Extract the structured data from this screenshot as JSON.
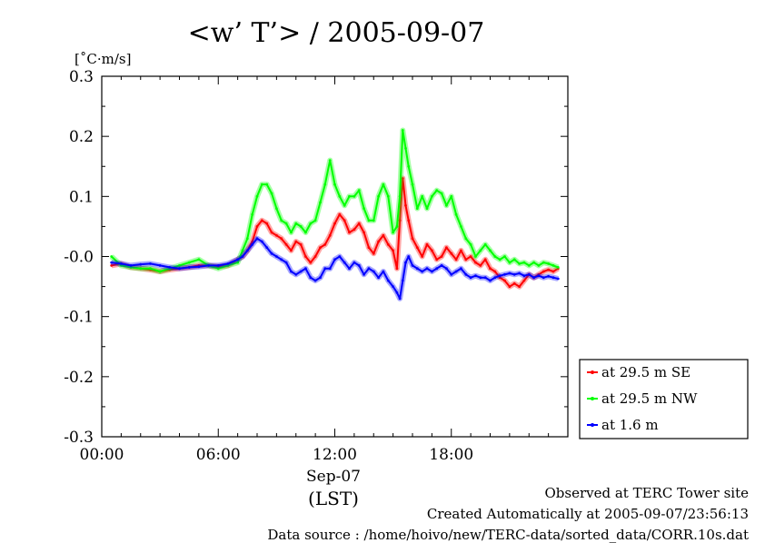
{
  "chart_data": {
    "type": "line",
    "title": "<w’ T’> / 2005-09-07",
    "ylabel": "[˚C·m/s]",
    "ylim": [
      -0.3,
      0.3
    ],
    "yticks": [
      "0.3",
      "0.2",
      "0.1",
      "-0.0",
      "-0.1",
      "-0.2",
      "-0.3"
    ],
    "xlim": [
      0,
      24
    ],
    "xticks": [
      "00:00",
      "06:00",
      "12:00",
      "18:00"
    ],
    "xdate": "Sep-07",
    "xunit": "(LST)",
    "grid": false,
    "legend_position": "lower-right outside",
    "series": [
      {
        "name": "at 29.5 m SE",
        "color": "#ff0000",
        "x": [
          0.5,
          1.0,
          1.5,
          2.0,
          2.5,
          3.0,
          3.5,
          4.0,
          4.5,
          5.0,
          5.5,
          6.0,
          6.5,
          7.0,
          7.25,
          7.5,
          7.75,
          8.0,
          8.25,
          8.5,
          8.75,
          9.0,
          9.25,
          9.5,
          9.75,
          10.0,
          10.25,
          10.5,
          10.75,
          11.0,
          11.25,
          11.5,
          11.75,
          12.0,
          12.25,
          12.5,
          12.75,
          13.0,
          13.25,
          13.5,
          13.75,
          14.0,
          14.25,
          14.5,
          14.75,
          15.0,
          15.2,
          15.35,
          15.5,
          15.65,
          15.8,
          16.0,
          16.25,
          16.5,
          16.75,
          17.0,
          17.25,
          17.5,
          17.75,
          18.0,
          18.25,
          18.5,
          18.75,
          19.0,
          19.25,
          19.5,
          19.75,
          20.0,
          20.25,
          20.5,
          20.75,
          21.0,
          21.25,
          21.5,
          21.75,
          22.0,
          22.25,
          22.5,
          22.75,
          23.0,
          23.25,
          23.5
        ],
        "y": [
          -0.015,
          -0.012,
          -0.018,
          -0.02,
          -0.022,
          -0.025,
          -0.022,
          -0.02,
          -0.018,
          -0.015,
          -0.015,
          -0.017,
          -0.015,
          -0.005,
          0.0,
          0.01,
          0.025,
          0.05,
          0.06,
          0.055,
          0.04,
          0.035,
          0.03,
          0.02,
          0.01,
          0.025,
          0.02,
          0.0,
          -0.01,
          0.0,
          0.015,
          0.02,
          0.035,
          0.055,
          0.07,
          0.06,
          0.04,
          0.045,
          0.055,
          0.04,
          0.015,
          0.005,
          0.025,
          0.035,
          0.02,
          0.01,
          -0.02,
          0.06,
          0.13,
          0.085,
          0.06,
          0.03,
          0.015,
          0.0,
          0.02,
          0.01,
          -0.005,
          0.0,
          0.015,
          0.005,
          -0.005,
          0.01,
          -0.005,
          0.0,
          -0.01,
          -0.015,
          -0.005,
          -0.02,
          -0.025,
          -0.035,
          -0.04,
          -0.05,
          -0.045,
          -0.05,
          -0.04,
          -0.03,
          -0.035,
          -0.03,
          -0.025,
          -0.022,
          -0.025,
          -0.02
        ]
      },
      {
        "name": "at 29.5 m NW",
        "color": "#00ff00",
        "x": [
          0.5,
          1.0,
          1.5,
          2.0,
          2.5,
          3.0,
          3.5,
          4.0,
          4.5,
          5.0,
          5.5,
          6.0,
          6.5,
          7.0,
          7.25,
          7.5,
          7.75,
          8.0,
          8.25,
          8.5,
          8.75,
          9.0,
          9.25,
          9.5,
          9.75,
          10.0,
          10.25,
          10.5,
          10.75,
          11.0,
          11.25,
          11.5,
          11.75,
          12.0,
          12.25,
          12.5,
          12.75,
          13.0,
          13.25,
          13.5,
          13.75,
          14.0,
          14.25,
          14.5,
          14.75,
          15.0,
          15.2,
          15.35,
          15.5,
          15.65,
          15.8,
          16.0,
          16.25,
          16.5,
          16.75,
          17.0,
          17.25,
          17.5,
          17.75,
          18.0,
          18.25,
          18.5,
          18.75,
          19.0,
          19.25,
          19.5,
          19.75,
          20.0,
          20.25,
          20.5,
          20.75,
          21.0,
          21.25,
          21.5,
          21.75,
          22.0,
          22.25,
          22.5,
          22.75,
          23.0,
          23.25,
          23.5
        ],
        "y": [
          0.0,
          -0.015,
          -0.018,
          -0.02,
          -0.02,
          -0.025,
          -0.02,
          -0.015,
          -0.01,
          -0.005,
          -0.015,
          -0.02,
          -0.015,
          -0.01,
          0.01,
          0.03,
          0.07,
          0.1,
          0.12,
          0.12,
          0.105,
          0.08,
          0.06,
          0.055,
          0.04,
          0.055,
          0.05,
          0.04,
          0.055,
          0.06,
          0.09,
          0.12,
          0.16,
          0.12,
          0.1,
          0.085,
          0.1,
          0.1,
          0.11,
          0.08,
          0.06,
          0.06,
          0.1,
          0.12,
          0.1,
          0.04,
          0.05,
          0.1,
          0.21,
          0.18,
          0.15,
          0.12,
          0.08,
          0.1,
          0.08,
          0.1,
          0.11,
          0.105,
          0.085,
          0.1,
          0.07,
          0.05,
          0.03,
          0.02,
          0.0,
          0.01,
          0.02,
          0.01,
          0.0,
          -0.005,
          0.0,
          -0.01,
          -0.005,
          -0.012,
          -0.01,
          -0.015,
          -0.01,
          -0.015,
          -0.01,
          -0.012,
          -0.015,
          -0.018
        ]
      },
      {
        "name": "at 1.6 m",
        "color": "#0000ff",
        "x": [
          0.5,
          1.0,
          1.5,
          2.0,
          2.5,
          3.0,
          3.5,
          4.0,
          4.5,
          5.0,
          5.5,
          6.0,
          6.5,
          7.0,
          7.25,
          7.5,
          7.75,
          8.0,
          8.25,
          8.5,
          8.75,
          9.0,
          9.25,
          9.5,
          9.75,
          10.0,
          10.25,
          10.5,
          10.75,
          11.0,
          11.25,
          11.5,
          11.75,
          12.0,
          12.25,
          12.5,
          12.75,
          13.0,
          13.25,
          13.5,
          13.75,
          14.0,
          14.25,
          14.5,
          14.75,
          15.0,
          15.2,
          15.35,
          15.5,
          15.65,
          15.8,
          16.0,
          16.25,
          16.5,
          16.75,
          17.0,
          17.25,
          17.5,
          17.75,
          18.0,
          18.25,
          18.5,
          18.75,
          19.0,
          19.25,
          19.5,
          19.75,
          20.0,
          20.25,
          20.5,
          20.75,
          21.0,
          21.25,
          21.5,
          21.75,
          22.0,
          22.25,
          22.5,
          22.75,
          23.0,
          23.25,
          23.5
        ],
        "y": [
          -0.01,
          -0.012,
          -0.015,
          -0.013,
          -0.012,
          -0.015,
          -0.018,
          -0.02,
          -0.018,
          -0.017,
          -0.015,
          -0.015,
          -0.012,
          -0.005,
          0.0,
          0.01,
          0.02,
          0.03,
          0.025,
          0.015,
          0.005,
          0.0,
          -0.005,
          -0.01,
          -0.025,
          -0.03,
          -0.025,
          -0.02,
          -0.035,
          -0.04,
          -0.035,
          -0.02,
          -0.02,
          -0.005,
          0.0,
          -0.01,
          -0.02,
          -0.01,
          -0.015,
          -0.03,
          -0.02,
          -0.025,
          -0.035,
          -0.025,
          -0.04,
          -0.05,
          -0.06,
          -0.07,
          -0.04,
          -0.01,
          0.0,
          -0.015,
          -0.02,
          -0.025,
          -0.02,
          -0.025,
          -0.02,
          -0.015,
          -0.02,
          -0.03,
          -0.025,
          -0.02,
          -0.03,
          -0.035,
          -0.032,
          -0.035,
          -0.035,
          -0.04,
          -0.035,
          -0.032,
          -0.03,
          -0.028,
          -0.03,
          -0.028,
          -0.032,
          -0.03,
          -0.035,
          -0.032,
          -0.035,
          -0.033,
          -0.035,
          -0.037
        ]
      }
    ]
  },
  "footer": {
    "line1": "Observed at TERC Tower site",
    "line2": "Created Automatically at 2005-09-07/23:56:13",
    "line3": "Data source : /home/hoivo/new/TERC-data/sorted_data/CORR.10s.dat"
  }
}
